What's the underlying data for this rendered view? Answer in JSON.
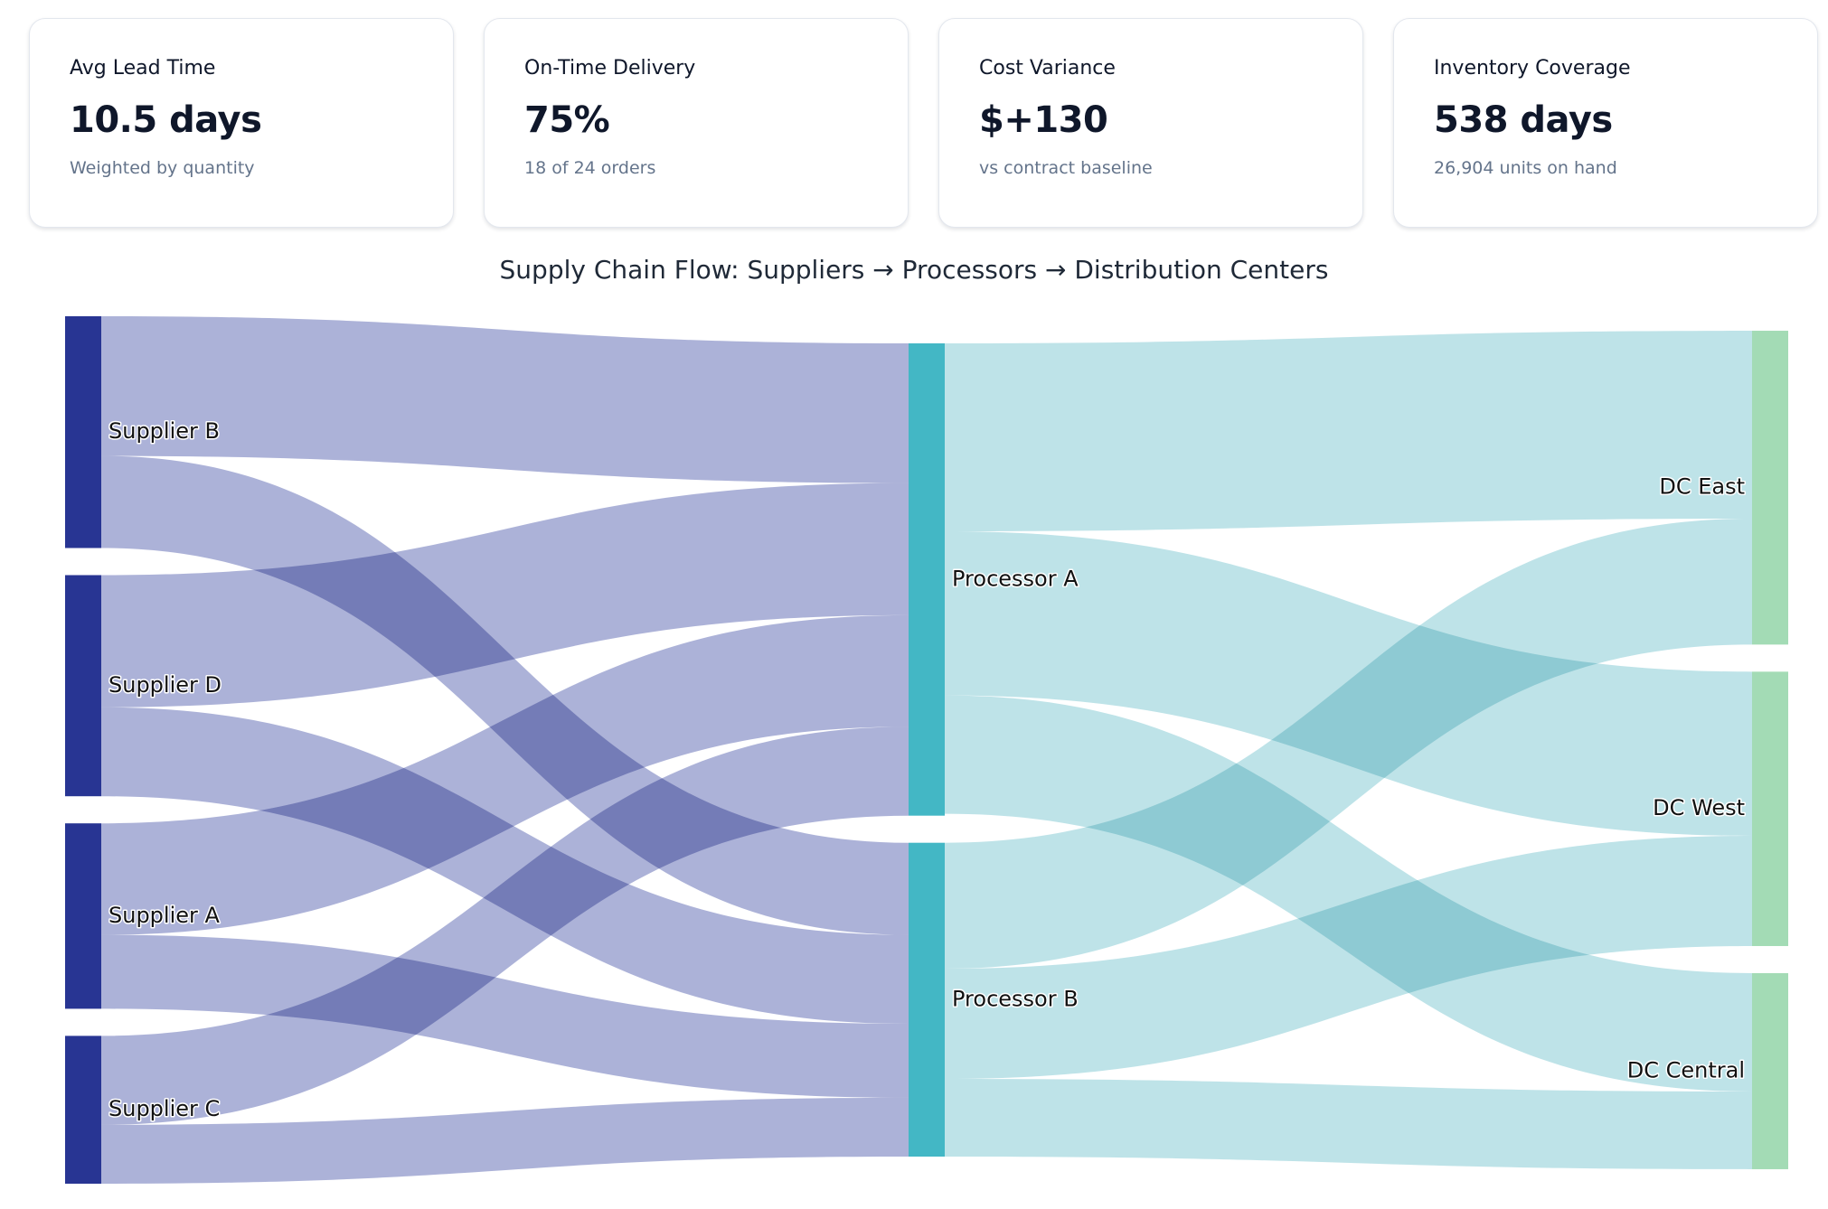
{
  "kpis": [
    {
      "label": "Avg Lead Time",
      "value": "10.5 days",
      "sub": "Weighted by quantity"
    },
    {
      "label": "On-Time Delivery",
      "value": "75%",
      "sub": "18 of 24 orders"
    },
    {
      "label": "Cost Variance",
      "value": "$+130",
      "sub": "vs contract baseline"
    },
    {
      "label": "Inventory Coverage",
      "value": "538 days",
      "sub": "26,904 units on hand"
    }
  ],
  "colors": {
    "supplier_node": "#283593",
    "processor_node": "#43b7c5",
    "dc_node": "#a3dbb5",
    "supplier_link": "#a8aed6",
    "processor_link": "#bbe2e7"
  },
  "chart_data": {
    "type": "sankey",
    "title": "Supply Chain Flow: Suppliers → Processors → Distribution Centers",
    "nodes": [
      {
        "id": "supB",
        "label": "Supplier B",
        "stage": 0
      },
      {
        "id": "supD",
        "label": "Supplier D",
        "stage": 0
      },
      {
        "id": "supA",
        "label": "Supplier A",
        "stage": 0
      },
      {
        "id": "supC",
        "label": "Supplier C",
        "stage": 0
      },
      {
        "id": "procA",
        "label": "Processor A",
        "stage": 1
      },
      {
        "id": "procB",
        "label": "Processor B",
        "stage": 1
      },
      {
        "id": "dcEast",
        "label": "DC East",
        "stage": 2
      },
      {
        "id": "dcWest",
        "label": "DC West",
        "stage": 2
      },
      {
        "id": "dcCentral",
        "label": "DC Central",
        "stage": 2
      }
    ],
    "links": [
      {
        "source": "supB",
        "target": "procA",
        "value": 2230
      },
      {
        "source": "supB",
        "target": "procB",
        "value": 1470
      },
      {
        "source": "supD",
        "target": "procA",
        "value": 2110
      },
      {
        "source": "supD",
        "target": "procB",
        "value": 1420
      },
      {
        "source": "supA",
        "target": "procA",
        "value": 1780
      },
      {
        "source": "supA",
        "target": "procB",
        "value": 1180
      },
      {
        "source": "supC",
        "target": "procA",
        "value": 1420
      },
      {
        "source": "supC",
        "target": "procB",
        "value": 940
      },
      {
        "source": "procA",
        "target": "dcEast",
        "value": 3000
      },
      {
        "source": "procA",
        "target": "dcWest",
        "value": 2620
      },
      {
        "source": "procA",
        "target": "dcCentral",
        "value": 1890
      },
      {
        "source": "procB",
        "target": "dcEast",
        "value": 2010
      },
      {
        "source": "procB",
        "target": "dcWest",
        "value": 1760
      },
      {
        "source": "procB",
        "target": "dcCentral",
        "value": 1240
      }
    ]
  }
}
